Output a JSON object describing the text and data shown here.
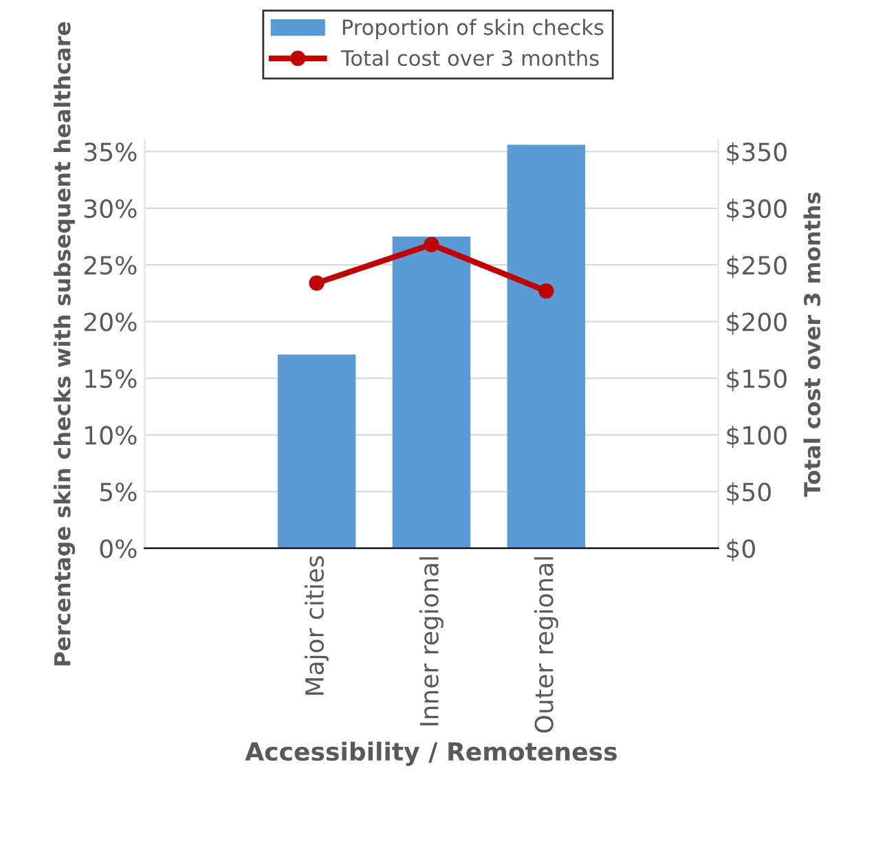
{
  "chart_data": {
    "type": "bar",
    "categories": [
      null,
      "Major cities",
      "Inner regional",
      "Outer regional",
      null
    ],
    "series": [
      {
        "name": "Proportion of skin checks",
        "color": "#5b9bd5",
        "values": [
          null,
          17.1,
          27.5,
          35.6,
          null
        ]
      },
      {
        "name": "Total cost over 3 months",
        "type": "line",
        "axis": "y2",
        "color": "#c00000",
        "values": [
          null,
          234,
          268,
          227,
          null
        ]
      }
    ],
    "xlabel": "Accessibility / Remoteness",
    "ylabel": "Percentage skin checks with subsequent healthcare",
    "y2label": "Total cost over 3 months",
    "ylim": [
      0,
      36
    ],
    "yticks": [
      {
        "value": 0,
        "label": "0%"
      },
      {
        "value": 5,
        "label": "5%"
      },
      {
        "value": 10,
        "label": "10%"
      },
      {
        "value": 15,
        "label": "15%"
      },
      {
        "value": 20,
        "label": "20%"
      },
      {
        "value": 25,
        "label": "25%"
      },
      {
        "value": 30,
        "label": "30%"
      },
      {
        "value": 35,
        "label": "35%"
      }
    ],
    "y2lim": [
      0,
      360
    ],
    "y2ticks": [
      {
        "value": 0,
        "label": "$0"
      },
      {
        "value": 50,
        "label": "$50"
      },
      {
        "value": 100,
        "label": "$100"
      },
      {
        "value": 150,
        "label": "$150"
      },
      {
        "value": 200,
        "label": "$200"
      },
      {
        "value": 250,
        "label": "$250"
      },
      {
        "value": 300,
        "label": "$300"
      },
      {
        "value": 350,
        "label": "$350"
      }
    ],
    "grid": "y",
    "legend": "top",
    "marker": "circle"
  }
}
